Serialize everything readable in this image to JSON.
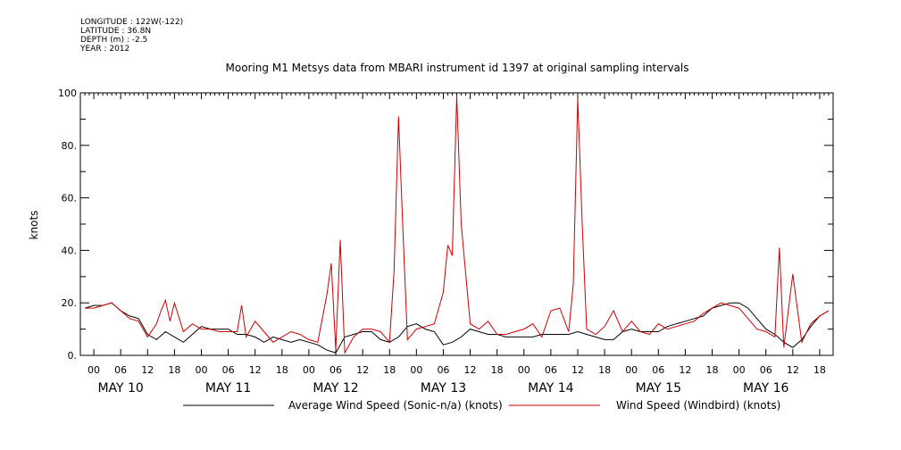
{
  "meta": {
    "longitude": "LONGITUDE : 122W(-122)",
    "latitude": "LATITUDE : 36.8N",
    "depth": "DEPTH (m) : -2.5",
    "year": "YEAR : 2012"
  },
  "chart_data": {
    "type": "line",
    "title": "Mooring M1 Metsys data from MBARI instrument id 1397 at original sampling intervals",
    "ylabel": "knots",
    "xlabel": "",
    "ylim": [
      0,
      100
    ],
    "xlim_hours": [
      -3,
      165
    ],
    "y_ticks": [
      "0.",
      "20.",
      "40.",
      "60.",
      "80.",
      "100"
    ],
    "hour_tick_labels": [
      "00",
      "06",
      "12",
      "18",
      "00",
      "06",
      "12",
      "18",
      "00",
      "06",
      "12",
      "18",
      "00",
      "06",
      "12",
      "18",
      "00",
      "06",
      "12",
      "18",
      "00",
      "06",
      "12",
      "18",
      "00",
      "06",
      "12",
      "18"
    ],
    "day_labels": [
      "MAY 10",
      "MAY 11",
      "MAY 12",
      "MAY 13",
      "MAY 14",
      "MAY 15",
      "MAY 16"
    ],
    "grid": false,
    "legend_position": "bottom",
    "colors": {
      "average": "#000000",
      "windbird": "#cc0000"
    },
    "series": [
      {
        "name": "Average Wind Speed (Sonic-n/a) (knots)",
        "x_hours": [
          -2,
          0,
          2,
          4,
          6,
          8,
          10,
          12,
          14,
          16,
          18,
          20,
          22,
          24,
          26,
          28,
          30,
          32,
          34,
          36,
          38,
          40,
          42,
          44,
          46,
          48,
          50,
          52,
          54,
          56,
          58,
          60,
          62,
          64,
          66,
          68,
          70,
          72,
          74,
          76,
          78,
          80,
          82,
          84,
          86,
          88,
          90,
          92,
          94,
          96,
          98,
          100,
          102,
          104,
          106,
          108,
          110,
          112,
          114,
          116,
          118,
          120,
          122,
          124,
          126,
          128,
          130,
          132,
          134,
          136,
          138,
          140,
          142,
          144,
          146,
          148,
          150,
          152,
          154,
          156,
          158,
          160,
          162,
          164
        ],
        "values": [
          18,
          19,
          19,
          20,
          17,
          15,
          14,
          8,
          6,
          9,
          7,
          5,
          8,
          11,
          10,
          10,
          10,
          8,
          8,
          7,
          5,
          7,
          6,
          5,
          6,
          5,
          4,
          2,
          1,
          7,
          8,
          9,
          9,
          6,
          5,
          7,
          11,
          12,
          10,
          9,
          4,
          5,
          7,
          10,
          9,
          8,
          8,
          7,
          7,
          7,
          7,
          8,
          8,
          8,
          8,
          9,
          8,
          7,
          6,
          6,
          9,
          10,
          9,
          9,
          9,
          11,
          12,
          13,
          14,
          15,
          18,
          19,
          20,
          20,
          18,
          14,
          10,
          8,
          5,
          3,
          6,
          11,
          15,
          17
        ]
      },
      {
        "name": "Wind Speed (Windbird) (knots)",
        "x_hours": [
          -2,
          0,
          2,
          4,
          6,
          8,
          10,
          12,
          14,
          15,
          16,
          17,
          18,
          20,
          22,
          24,
          26,
          28,
          30,
          32,
          33,
          34,
          36,
          38,
          40,
          42,
          44,
          46,
          48,
          50,
          52,
          53,
          54,
          55,
          56,
          58,
          60,
          62,
          64,
          66,
          67,
          68,
          69,
          70,
          72,
          74,
          76,
          78,
          79,
          80,
          81,
          82,
          84,
          86,
          88,
          90,
          92,
          94,
          96,
          98,
          100,
          102,
          104,
          106,
          107,
          108,
          109,
          110,
          112,
          114,
          116,
          118,
          120,
          122,
          124,
          126,
          128,
          130,
          132,
          134,
          136,
          138,
          140,
          142,
          144,
          146,
          148,
          150,
          152,
          153,
          154,
          156,
          158,
          160,
          162,
          164
        ],
        "values": [
          18,
          18,
          19,
          20,
          17,
          14,
          13,
          7,
          12,
          17,
          21,
          13,
          20,
          9,
          12,
          10,
          10,
          9,
          9,
          9,
          19,
          7,
          13,
          9,
          5,
          7,
          9,
          8,
          6,
          5,
          23,
          35,
          2,
          44,
          1,
          7,
          10,
          10,
          9,
          5,
          32,
          91,
          47,
          6,
          10,
          11,
          12,
          24,
          42,
          38,
          99,
          50,
          12,
          10,
          13,
          8,
          8,
          9,
          10,
          12,
          7,
          17,
          18,
          9,
          27,
          98,
          50,
          10,
          8,
          11,
          17,
          9,
          13,
          9,
          8,
          12,
          10,
          11,
          12,
          13,
          16,
          18,
          20,
          19,
          18,
          14,
          10,
          9,
          7,
          41,
          3,
          31,
          5,
          12,
          15,
          17
        ]
      }
    ]
  }
}
